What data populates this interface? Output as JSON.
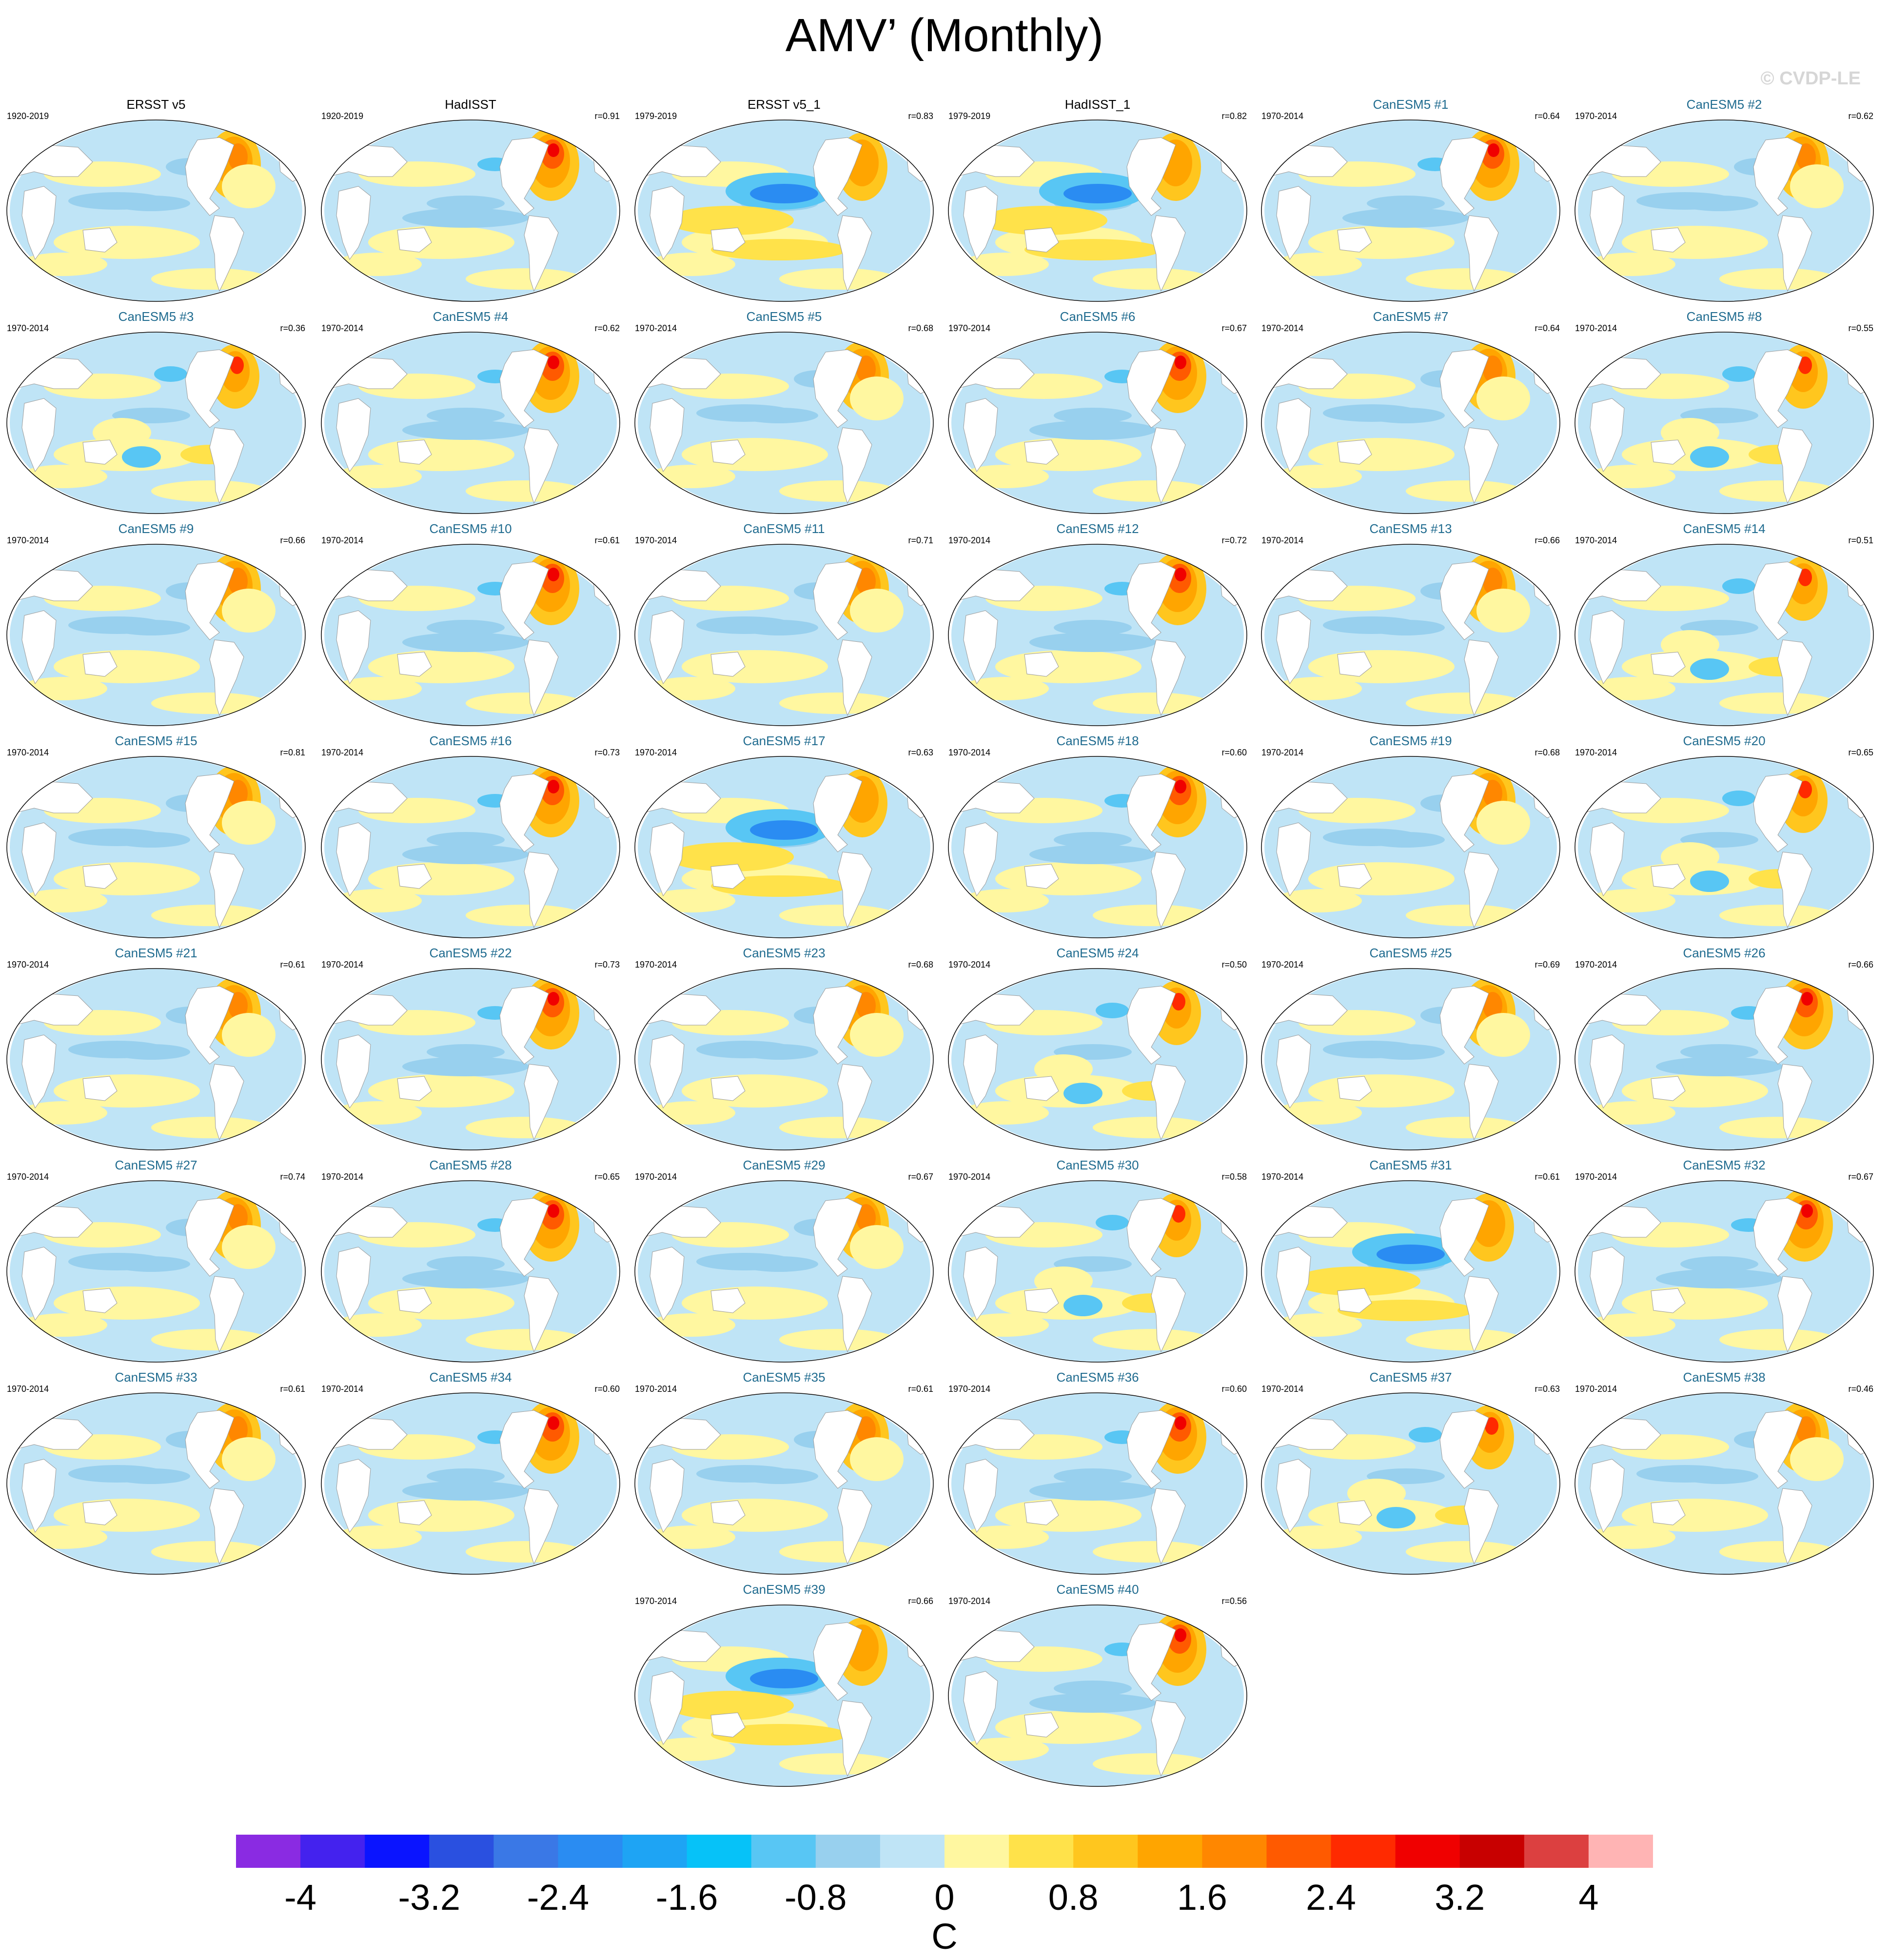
{
  "title": "AMV’ (Monthly)",
  "watermark": "© CVDP-LE",
  "colorbar": {
    "units": "C",
    "labels": [
      "-4",
      "-3.2",
      "-2.4",
      "-1.6",
      "-0.8",
      "0",
      "0.8",
      "1.6",
      "2.4",
      "3.2",
      "4"
    ],
    "colors": [
      "#8a2be2",
      "#4422ee",
      "#0a14ff",
      "#2a50e0",
      "#3a78e6",
      "#2a8cf2",
      "#1ea4f4",
      "#06c2f8",
      "#58c6f4",
      "#98d0ee",
      "#bfe4f6",
      "#fff7a0",
      "#ffe24a",
      "#ffc61e",
      "#ffa500",
      "#ff8700",
      "#ff5a00",
      "#ff2a00",
      "#f00000",
      "#c80000",
      "#dc4040",
      "#ffb4b4"
    ]
  },
  "panels": [
    {
      "name": "ERSST v5",
      "period": "1920-2019",
      "r": "",
      "kind": "obs",
      "pattern": 0
    },
    {
      "name": "HadISST",
      "period": "1920-2019",
      "r": "r=0.91",
      "kind": "obs",
      "pattern": 1
    },
    {
      "name": "ERSST v5_1",
      "period": "1979-2019",
      "r": "r=0.83",
      "kind": "obs",
      "pattern": 2
    },
    {
      "name": "HadISST_1",
      "period": "1979-2019",
      "r": "r=0.82",
      "kind": "obs",
      "pattern": 2
    },
    {
      "name": "CanESM5 #1",
      "period": "1970-2014",
      "r": "r=0.64",
      "kind": "model",
      "pattern": 1
    },
    {
      "name": "CanESM5 #2",
      "period": "1970-2014",
      "r": "r=0.62",
      "kind": "model",
      "pattern": 0
    },
    {
      "name": "CanESM5 #3",
      "period": "1970-2014",
      "r": "r=0.36",
      "kind": "model",
      "pattern": 3
    },
    {
      "name": "CanESM5 #4",
      "period": "1970-2014",
      "r": "r=0.62",
      "kind": "model",
      "pattern": 1
    },
    {
      "name": "CanESM5 #5",
      "period": "1970-2014",
      "r": "r=0.68",
      "kind": "model",
      "pattern": 0
    },
    {
      "name": "CanESM5 #6",
      "period": "1970-2014",
      "r": "r=0.67",
      "kind": "model",
      "pattern": 1
    },
    {
      "name": "CanESM5 #7",
      "period": "1970-2014",
      "r": "r=0.64",
      "kind": "model",
      "pattern": 0
    },
    {
      "name": "CanESM5 #8",
      "period": "1970-2014",
      "r": "r=0.55",
      "kind": "model",
      "pattern": 3
    },
    {
      "name": "CanESM5 #9",
      "period": "1970-2014",
      "r": "r=0.66",
      "kind": "model",
      "pattern": 0
    },
    {
      "name": "CanESM5 #10",
      "period": "1970-2014",
      "r": "r=0.61",
      "kind": "model",
      "pattern": 1
    },
    {
      "name": "CanESM5 #11",
      "period": "1970-2014",
      "r": "r=0.71",
      "kind": "model",
      "pattern": 0
    },
    {
      "name": "CanESM5 #12",
      "period": "1970-2014",
      "r": "r=0.72",
      "kind": "model",
      "pattern": 1
    },
    {
      "name": "CanESM5 #13",
      "period": "1970-2014",
      "r": "r=0.66",
      "kind": "model",
      "pattern": 0
    },
    {
      "name": "CanESM5 #14",
      "period": "1970-2014",
      "r": "r=0.51",
      "kind": "model",
      "pattern": 3
    },
    {
      "name": "CanESM5 #15",
      "period": "1970-2014",
      "r": "r=0.81",
      "kind": "model",
      "pattern": 0
    },
    {
      "name": "CanESM5 #16",
      "period": "1970-2014",
      "r": "r=0.73",
      "kind": "model",
      "pattern": 1
    },
    {
      "name": "CanESM5 #17",
      "period": "1970-2014",
      "r": "r=0.63",
      "kind": "model",
      "pattern": 2
    },
    {
      "name": "CanESM5 #18",
      "period": "1970-2014",
      "r": "r=0.60",
      "kind": "model",
      "pattern": 1
    },
    {
      "name": "CanESM5 #19",
      "period": "1970-2014",
      "r": "r=0.68",
      "kind": "model",
      "pattern": 0
    },
    {
      "name": "CanESM5 #20",
      "period": "1970-2014",
      "r": "r=0.65",
      "kind": "model",
      "pattern": 3
    },
    {
      "name": "CanESM5 #21",
      "period": "1970-2014",
      "r": "r=0.61",
      "kind": "model",
      "pattern": 0
    },
    {
      "name": "CanESM5 #22",
      "period": "1970-2014",
      "r": "r=0.73",
      "kind": "model",
      "pattern": 1
    },
    {
      "name": "CanESM5 #23",
      "period": "1970-2014",
      "r": "r=0.68",
      "kind": "model",
      "pattern": 0
    },
    {
      "name": "CanESM5 #24",
      "period": "1970-2014",
      "r": "r=0.50",
      "kind": "model",
      "pattern": 3
    },
    {
      "name": "CanESM5 #25",
      "period": "1970-2014",
      "r": "r=0.69",
      "kind": "model",
      "pattern": 0
    },
    {
      "name": "CanESM5 #26",
      "period": "1970-2014",
      "r": "r=0.66",
      "kind": "model",
      "pattern": 1
    },
    {
      "name": "CanESM5 #27",
      "period": "1970-2014",
      "r": "r=0.74",
      "kind": "model",
      "pattern": 0
    },
    {
      "name": "CanESM5 #28",
      "period": "1970-2014",
      "r": "r=0.65",
      "kind": "model",
      "pattern": 1
    },
    {
      "name": "CanESM5 #29",
      "period": "1970-2014",
      "r": "r=0.67",
      "kind": "model",
      "pattern": 0
    },
    {
      "name": "CanESM5 #30",
      "period": "1970-2014",
      "r": "r=0.58",
      "kind": "model",
      "pattern": 3
    },
    {
      "name": "CanESM5 #31",
      "period": "1970-2014",
      "r": "r=0.61",
      "kind": "model",
      "pattern": 2
    },
    {
      "name": "CanESM5 #32",
      "period": "1970-2014",
      "r": "r=0.67",
      "kind": "model",
      "pattern": 1
    },
    {
      "name": "CanESM5 #33",
      "period": "1970-2014",
      "r": "r=0.61",
      "kind": "model",
      "pattern": 0
    },
    {
      "name": "CanESM5 #34",
      "period": "1970-2014",
      "r": "r=0.60",
      "kind": "model",
      "pattern": 1
    },
    {
      "name": "CanESM5 #35",
      "period": "1970-2014",
      "r": "r=0.61",
      "kind": "model",
      "pattern": 0
    },
    {
      "name": "CanESM5 #36",
      "period": "1970-2014",
      "r": "r=0.60",
      "kind": "model",
      "pattern": 1
    },
    {
      "name": "CanESM5 #37",
      "period": "1970-2014",
      "r": "r=0.63",
      "kind": "model",
      "pattern": 3
    },
    {
      "name": "CanESM5 #38",
      "period": "1970-2014",
      "r": "r=0.46",
      "kind": "model",
      "pattern": 0
    },
    {
      "name": "CanESM5 #39",
      "period": "1970-2014",
      "r": "r=0.66",
      "kind": "model",
      "pattern": 2
    },
    {
      "name": "CanESM5 #40",
      "period": "1970-2014",
      "r": "r=0.56",
      "kind": "model",
      "pattern": 1
    }
  ]
}
